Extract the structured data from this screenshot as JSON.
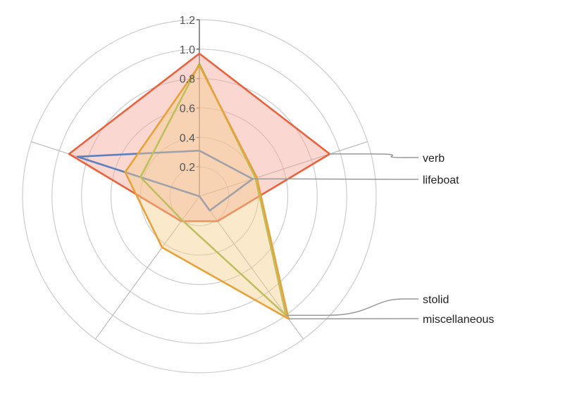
{
  "chart_data": {
    "type": "radar",
    "rmax": 1.2,
    "ticks": [
      "0.2",
      "0.4",
      "0.6",
      "0.8",
      "1.0",
      "1.2"
    ],
    "axes_count": 5,
    "series": [
      {
        "name": "verb",
        "color": "#e8623c",
        "fill": "#f4a898",
        "fill_opacity": 0.45,
        "values": [
          0.97,
          0.93,
          0.21,
          0.21,
          0.93
        ]
      },
      {
        "name": "lifeboat",
        "color": "#5b7fbf",
        "fill": "#9fb1dc",
        "fill_opacity": 0.0,
        "values": [
          0.31,
          0.38,
          0.12,
          0.0,
          0.87
        ]
      },
      {
        "name": "stolid",
        "color": "#93b33a",
        "fill": "#c9d98f",
        "fill_opacity": 0.0,
        "values": [
          0.9,
          0.4,
          1.0,
          0.2,
          0.42
        ]
      },
      {
        "name": "miscellaneous",
        "color": "#e8a13a",
        "fill": "#f6cf8f",
        "fill_opacity": 0.45,
        "values": [
          0.89,
          0.41,
          1.03,
          0.43,
          0.53
        ]
      }
    ],
    "legend": [
      "verb",
      "lifeboat",
      "stolid",
      "miscellaneous"
    ]
  }
}
